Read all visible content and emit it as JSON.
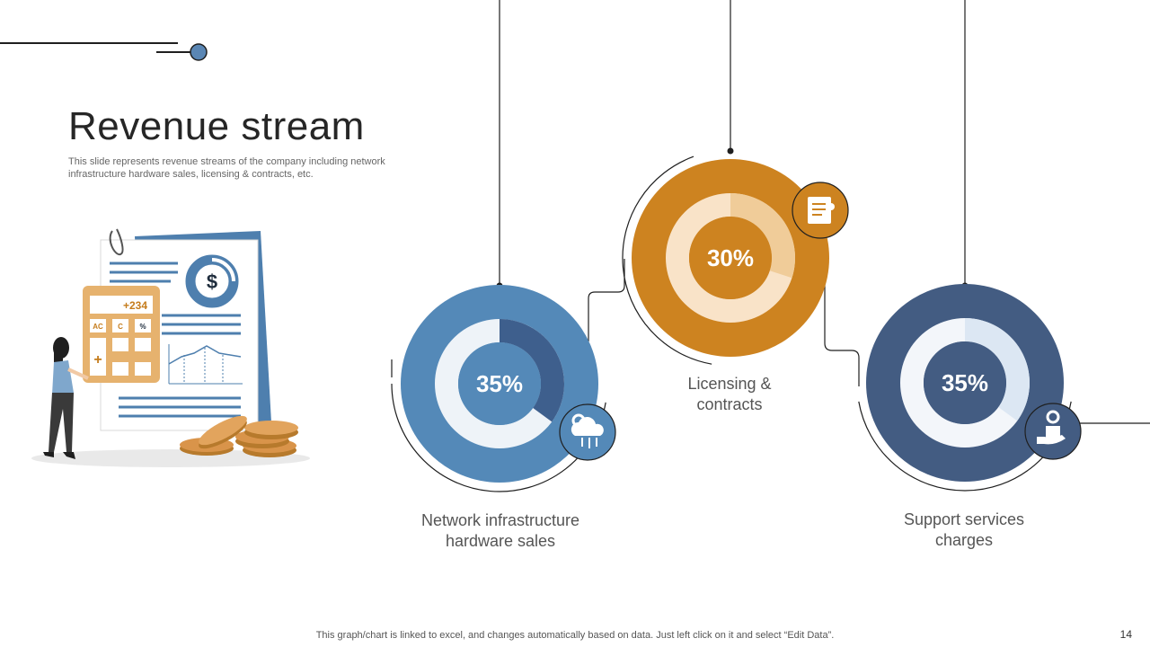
{
  "title": "Revenue stream",
  "subtitle": "This slide represents revenue streams of the company including network infrastructure hardware sales, licensing & contracts, etc.",
  "illustration": {
    "calculator_display": "+234",
    "calculator_keys": [
      "AC",
      "C",
      "%"
    ],
    "plus_key": "+",
    "currency_symbol": "$"
  },
  "chart_data": {
    "type": "pie",
    "segments": [
      {
        "name": "Network infrastructure hardware sales",
        "value": 35,
        "label": "35%",
        "color": "#5489b8",
        "dark": "#3e5f8d",
        "light": "#eef3f8",
        "icon": "cloud-gear-icon"
      },
      {
        "name": "Licensing & contracts",
        "value": 30,
        "label": "30%",
        "color": "#cd8320",
        "dark": "#f0cc99",
        "light": "#f9e3c8",
        "icon": "contract-document-icon"
      },
      {
        "name": "Support services charges",
        "value": 35,
        "label": "35%",
        "color": "#435c82",
        "dark": "#dce7f3",
        "light": "#f3f6fa",
        "icon": "hand-box-gear-icon"
      }
    ]
  },
  "labels": {
    "seg1_line1": "Network infrastructure",
    "seg1_line2": "hardware sales",
    "seg2_line1": "Licensing &",
    "seg2_line2": "contracts",
    "seg3_line1": "Support services",
    "seg3_line2": "charges"
  },
  "footnote": "This graph/chart is linked to excel,  and changes automatically based on data. Just left click on it and select “Edit Data”.",
  "page_number": "14"
}
